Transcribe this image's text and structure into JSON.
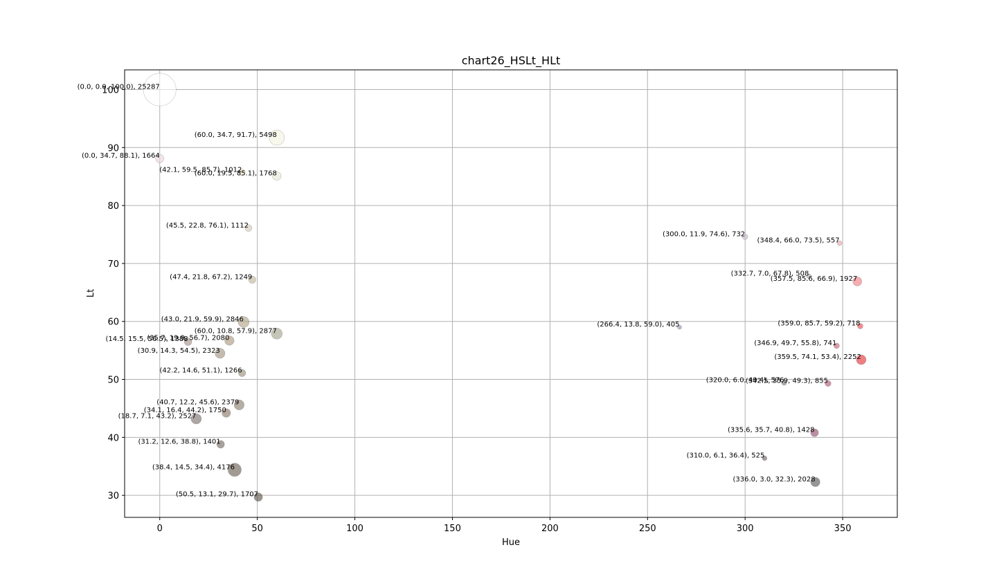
{
  "chart_data": {
    "type": "scatter",
    "title": "chart26_HSLt_HLt",
    "xlabel": "Hue",
    "ylabel": "Lt",
    "xlim": [
      -18,
      378
    ],
    "ylim": [
      26.2,
      103.4
    ],
    "xticks": [
      0,
      50,
      100,
      150,
      200,
      250,
      300,
      350
    ],
    "yticks": [
      30,
      40,
      50,
      60,
      70,
      80,
      90,
      100
    ],
    "grid": true,
    "points": [
      {
        "h": 0.0,
        "s": 0.0,
        "l": 100.0,
        "count": 25287,
        "label": "(0.0, 0.0, 100.0), 25287",
        "color": "#ffffff"
      },
      {
        "h": 60.0,
        "s": 34.7,
        "l": 91.7,
        "count": 5498,
        "label": "(60.0, 34.7, 91.7), 5498",
        "color": "#f2f2df"
      },
      {
        "h": 0.0,
        "s": 34.7,
        "l": 88.1,
        "count": 1664,
        "label": "(0.0, 34.7, 88.1), 1664",
        "color": "#e9d5d5"
      },
      {
        "h": 42.1,
        "s": 59.5,
        "l": 85.7,
        "count": 1012,
        "label": "(42.1, 59.5, 85.7), 1012",
        "color": "#f2e2c5"
      },
      {
        "h": 60.0,
        "s": 19.5,
        "l": 85.1,
        "count": 1768,
        "label": "(60.0, 19.5, 85.1), 1768",
        "color": "#e4e4d2"
      },
      {
        "h": 45.5,
        "s": 22.8,
        "l": 76.1,
        "count": 1112,
        "label": "(45.5, 22.8, 76.1), 1112",
        "color": "#d0c8b3"
      },
      {
        "h": 47.4,
        "s": 21.8,
        "l": 67.2,
        "count": 1249,
        "label": "(47.4, 21.8, 67.2), 1249",
        "color": "#bdb397"
      },
      {
        "h": 43.0,
        "s": 21.9,
        "l": 59.9,
        "count": 2846,
        "label": "(43.0, 21.9, 59.9), 2846",
        "color": "#ad9f81"
      },
      {
        "h": 60.0,
        "s": 10.8,
        "l": 57.9,
        "count": 2877,
        "label": "(60.0, 10.8, 57.9), 2877",
        "color": "#a0a088"
      },
      {
        "h": 35.7,
        "s": 19.9,
        "l": 56.7,
        "count": 2080,
        "label": "(35.7, 19.9, 56.7), 2080",
        "color": "#a69278"
      },
      {
        "h": 14.5,
        "s": 15.5,
        "l": 56.5,
        "count": 1388,
        "label": "(14.5, 15.5, 56.5), 1388",
        "color": "#a18c82"
      },
      {
        "h": 30.9,
        "s": 14.3,
        "l": 54.5,
        "count": 2323,
        "label": "(30.9, 14.3, 54.5), 2323",
        "color": "#9d8d7b"
      },
      {
        "h": 42.2,
        "s": 14.6,
        "l": 51.1,
        "count": 1266,
        "label": "(42.2, 14.6, 51.1), 1266",
        "color": "#958a71"
      },
      {
        "h": 40.7,
        "s": 12.2,
        "l": 45.6,
        "count": 2379,
        "label": "(40.7, 12.2, 45.6), 2379",
        "color": "#827866"
      },
      {
        "h": 34.1,
        "s": 16.4,
        "l": 44.2,
        "count": 1750,
        "label": "(34.1, 16.4, 44.2), 1750",
        "color": "#83705e"
      },
      {
        "h": 18.7,
        "s": 7.1,
        "l": 43.2,
        "count": 2527,
        "label": "(18.7, 7.1, 43.2), 2527",
        "color": "#756966"
      },
      {
        "h": 31.2,
        "s": 12.6,
        "l": 38.8,
        "count": 1401,
        "label": "(31.2, 12.6, 38.8), 1401",
        "color": "#6f6256"
      },
      {
        "h": 38.4,
        "s": 14.5,
        "l": 34.4,
        "count": 4176,
        "label": "(38.4, 14.5, 34.4), 4176",
        "color": "#64594b"
      },
      {
        "h": 50.5,
        "s": 13.1,
        "l": 29.7,
        "count": 1707,
        "label": "(50.5, 13.1, 29.7), 1707",
        "color": "#554f42"
      },
      {
        "h": 300.0,
        "s": 11.9,
        "l": 74.6,
        "count": 732,
        "label": "(300.0, 11.9, 74.6), 732",
        "color": "#c6b6c6"
      },
      {
        "h": 348.4,
        "s": 66.0,
        "l": 73.5,
        "count": 557,
        "label": "(348.4, 66.0, 73.5), 557",
        "color": "#e9a0ad"
      },
      {
        "h": 332.7,
        "s": 7.0,
        "l": 67.8,
        "count": 508,
        "label": "(332.7, 7.0, 67.8), 508",
        "color": "#b2a7ac"
      },
      {
        "h": 357.5,
        "s": 85.6,
        "l": 66.9,
        "count": 1927,
        "label": "(357.5, 85.6, 66.9), 1927",
        "color": "#f0767e"
      },
      {
        "h": 266.4,
        "s": 13.8,
        "l": 59.0,
        "count": 405,
        "label": "(266.4, 13.8, 59.0), 405",
        "color": "#948aa7"
      },
      {
        "h": 359.0,
        "s": 85.7,
        "l": 59.2,
        "count": 718,
        "label": "(359.0, 85.7, 59.2), 718",
        "color": "#ec4146"
      },
      {
        "h": 346.9,
        "s": 49.7,
        "l": 55.8,
        "count": 741,
        "label": "(346.9, 49.7, 55.8), 741",
        "color": "#c45c71"
      },
      {
        "h": 359.5,
        "s": 74.1,
        "l": 53.4,
        "count": 2252,
        "label": "(359.5, 74.1, 53.4), 2252",
        "color": "#e3292d"
      },
      {
        "h": 320.0,
        "s": 6.0,
        "l": 49.4,
        "count": 576,
        "label": "(320.0, 6.0, 49.4), 576",
        "color": "#847780"
      },
      {
        "h": 342.5,
        "s": 35.9,
        "l": 49.3,
        "count": 855,
        "label": "(342.5, 35.9, 49.3), 855",
        "color": "#aa5070"
      },
      {
        "h": 335.6,
        "s": 35.7,
        "l": 40.8,
        "count": 1428,
        "label": "(335.6, 35.7, 40.8), 1428",
        "color": "#8d4368"
      },
      {
        "h": 310.0,
        "s": 6.1,
        "l": 36.4,
        "count": 525,
        "label": "(310.0, 6.1, 36.4), 525",
        "color": "#625762"
      },
      {
        "h": 336.0,
        "s": 3.0,
        "l": 32.3,
        "count": 2028,
        "label": "(336.0, 3.0, 32.3), 2028",
        "color": "#544f52"
      }
    ]
  }
}
